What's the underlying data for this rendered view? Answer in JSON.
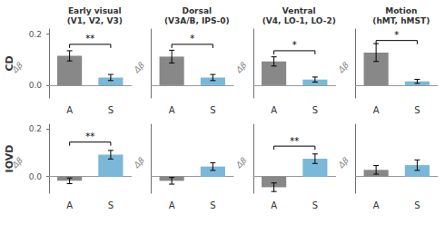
{
  "chart_data": [
    {
      "type": "bar",
      "title": "Early visual\n(V1, V2, V3)",
      "ylabel": "Δβ",
      "categories": [
        "A",
        "S"
      ],
      "values": [
        0.115,
        0.03
      ],
      "errors": [
        0.02,
        0.012
      ],
      "colors": [
        "#888888",
        "#7ab8d9"
      ],
      "ylim": [
        -0.05,
        0.22
      ],
      "yticks": [
        {
          "value": 0,
          "label": "0.0"
        },
        0.2
      ],
      "grid": false,
      "annotations": [
        {
          "text": "**",
          "y": 0.16
        }
      ]
    },
    {
      "type": "bar",
      "title": "Dorsal\n(V3A/B, IPS-0)",
      "ylabel": "Δβ",
      "categories": [
        "A",
        "S"
      ],
      "values": [
        0.112,
        0.03
      ],
      "errors": [
        0.025,
        0.012
      ],
      "colors": [
        "#888888",
        "#7ab8d9"
      ],
      "ylim": [
        -0.05,
        0.22
      ],
      "yticks": [
        {
          "value": 0,
          "label": "0.0"
        },
        0.2
      ],
      "grid": false,
      "tick_labels": "x",
      "annotations": [
        {
          "text": "*",
          "y": 0.16
        }
      ]
    },
    {
      "type": "bar",
      "title": "Ventral\n(V4, LO-1, LO-2)",
      "ylabel": "Δβ",
      "categories": [
        "A",
        "S"
      ],
      "values": [
        0.093,
        0.022
      ],
      "errors": [
        0.018,
        0.01
      ],
      "colors": [
        "#888888",
        "#7ab8d9"
      ],
      "ylim": [
        -0.05,
        0.22
      ],
      "yticks": [
        {
          "value": 0,
          "label": "0.0"
        },
        0.2
      ],
      "grid": false,
      "tick_labels": "x",
      "annotations": [
        {
          "text": "*",
          "y": 0.135
        }
      ]
    },
    {
      "type": "bar",
      "title": "Motion\n(hMT, hMST)",
      "ylabel": "Δβ",
      "categories": [
        "A",
        "S"
      ],
      "values": [
        0.128,
        0.015
      ],
      "errors": [
        0.035,
        0.008
      ],
      "colors": [
        "#888888",
        "#7ab8d9"
      ],
      "ylim": [
        -0.05,
        0.22
      ],
      "yticks": [
        {
          "value": 0,
          "label": "0.0"
        },
        0.2
      ],
      "grid": false,
      "tick_labels": "x",
      "annotations": [
        {
          "text": "*",
          "y": 0.175
        }
      ]
    },
    {
      "type": "bar",
      "ylabel": "Δβ",
      "categories": [
        "A",
        "S"
      ],
      "values": [
        -0.018,
        0.092
      ],
      "errors": [
        0.012,
        0.018
      ],
      "colors": [
        "#888888",
        "#7ab8d9"
      ],
      "ylim": [
        -0.07,
        0.22
      ],
      "yticks": [
        {
          "value": 0,
          "label": "0.0"
        },
        0.2
      ],
      "grid": false,
      "annotations": [
        {
          "text": "**",
          "y": 0.145
        }
      ]
    },
    {
      "type": "bar",
      "ylabel": "Δβ",
      "categories": [
        "A",
        "S"
      ],
      "values": [
        -0.018,
        0.042
      ],
      "errors": [
        0.014,
        0.016
      ],
      "colors": [
        "#888888",
        "#7ab8d9"
      ],
      "ylim": [
        -0.07,
        0.22
      ],
      "yticks": [
        {
          "value": 0,
          "label": "0.0"
        },
        0.2
      ],
      "grid": false,
      "tick_labels": "x"
    },
    {
      "type": "bar",
      "ylabel": "Δβ",
      "categories": [
        "A",
        "S"
      ],
      "values": [
        -0.045,
        0.075
      ],
      "errors": [
        0.018,
        0.02
      ],
      "colors": [
        "#888888",
        "#7ab8d9"
      ],
      "ylim": [
        -0.07,
        0.22
      ],
      "yticks": [
        {
          "value": 0,
          "label": "0.0"
        },
        0.2
      ],
      "grid": false,
      "tick_labels": "x",
      "annotations": [
        {
          "text": "**",
          "y": 0.128
        }
      ]
    },
    {
      "type": "bar",
      "ylabel": "Δβ",
      "categories": [
        "A",
        "S"
      ],
      "values": [
        0.028,
        0.048
      ],
      "errors": [
        0.018,
        0.022
      ],
      "colors": [
        "#888888",
        "#7ab8d9"
      ],
      "ylim": [
        -0.07,
        0.22
      ],
      "yticks": [
        {
          "value": 0,
          "label": "0.0"
        },
        0.2
      ],
      "grid": false,
      "tick_labels": "x"
    }
  ],
  "row_labels": [
    "CD",
    "IOVD"
  ]
}
